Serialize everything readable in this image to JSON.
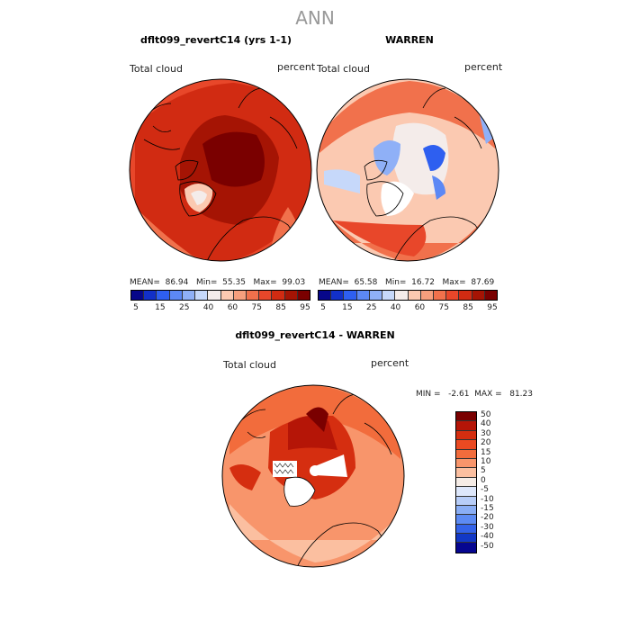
{
  "title": "ANN",
  "panels": [
    {
      "title": "dflt099_revertC14 (yrs 1-1)",
      "var_label": "Total cloud",
      "unit_label": "percent",
      "stats": "MEAN=  86.94   Min=  55.35   Max=  99.03"
    },
    {
      "title": "WARREN",
      "var_label": "Total cloud",
      "unit_label": "percent",
      "stats": "MEAN=  65.58   Min=  16.72   Max=  87.69"
    },
    {
      "title": "dflt099_revertC14 - WARREN",
      "var_label": "Total cloud",
      "unit_label": "percent",
      "stats": "MIN =   -2.61  MAX =   81.23"
    }
  ],
  "abs_colorbar": {
    "colors": [
      "#07078a",
      "#1230c8",
      "#2e5ff0",
      "#5c88f5",
      "#8fb0f7",
      "#c6d8fa",
      "#f4ecea",
      "#fbc9b1",
      "#f79f7d",
      "#f1714c",
      "#e8472a",
      "#d12b12",
      "#a51404",
      "#7a0000"
    ],
    "tick_labels": [
      "5",
      "15",
      "25",
      "40",
      "60",
      "75",
      "85",
      "95"
    ]
  },
  "diff_colorbar": {
    "colors": [
      "#7a0000",
      "#b51507",
      "#d52e10",
      "#ea4a22",
      "#f26c3c",
      "#f8956b",
      "#fbbfa0",
      "#f5ece6",
      "#dde7fb",
      "#b7cdf8",
      "#8aaef5",
      "#5d8bf3",
      "#3463e9",
      "#1238c6",
      "#060690"
    ],
    "tick_labels": [
      "50",
      "40",
      "30",
      "20",
      "15",
      "10",
      "5",
      "0",
      "-5",
      "-10",
      "-15",
      "-20",
      "-30",
      "-40",
      "-50"
    ]
  }
}
